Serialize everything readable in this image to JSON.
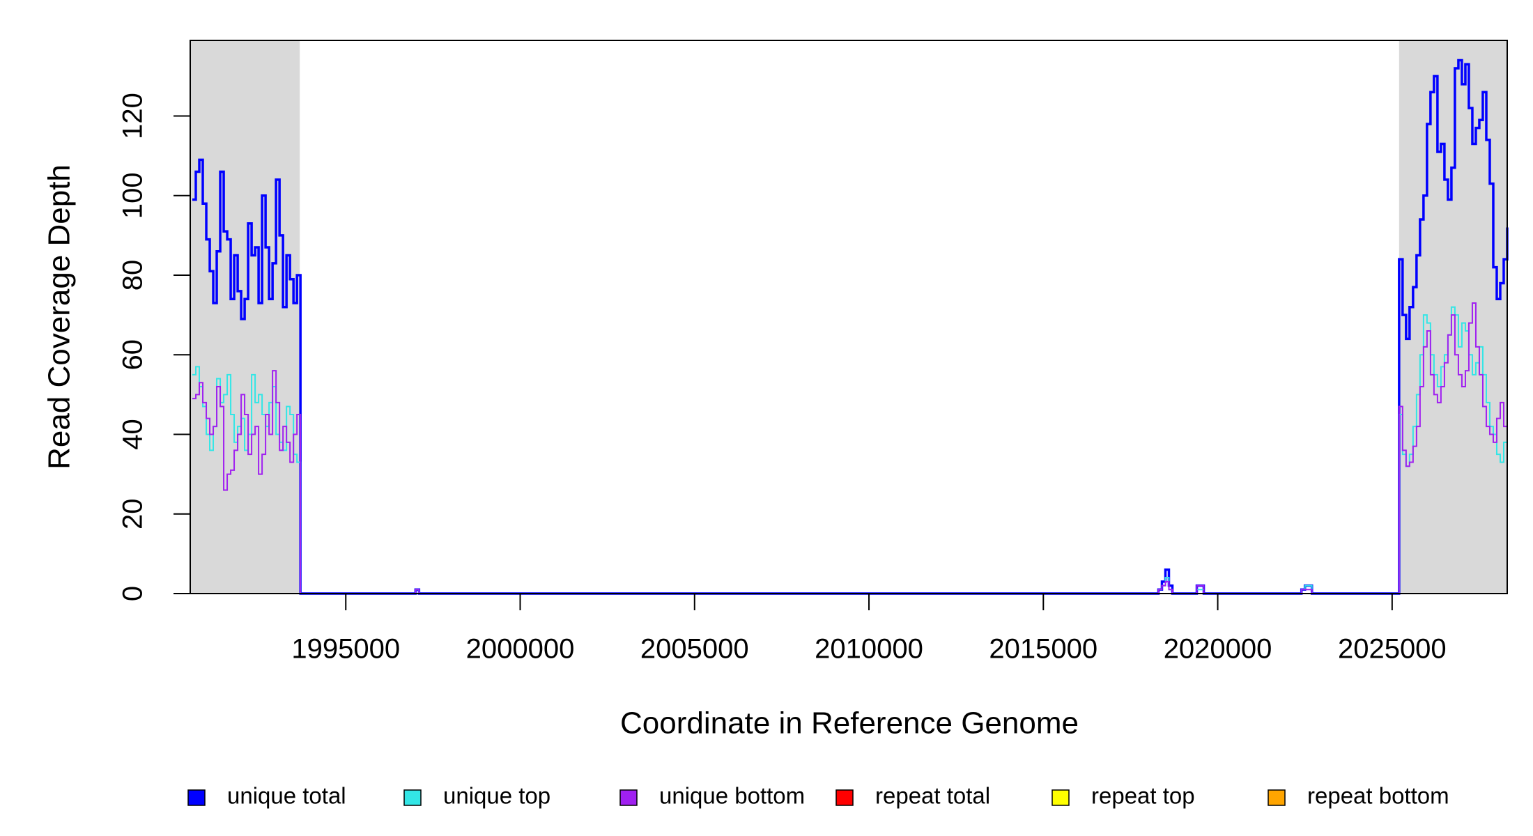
{
  "chart_data": {
    "type": "step-line",
    "xlabel": "Coordinate in Reference Genome",
    "ylabel": "Read Coverage Depth",
    "xlim": [
      1990540,
      2028300
    ],
    "ylim": [
      0,
      139
    ],
    "xticks": [
      1995000,
      2000000,
      2005000,
      2010000,
      2015000,
      2020000,
      2025000
    ],
    "yticks": [
      0,
      20,
      40,
      60,
      80,
      100,
      120
    ],
    "shaded_regions": [
      [
        1990540,
        1993680
      ],
      [
        2025200,
        2028300
      ]
    ],
    "shade_color": "#d9d9d9",
    "x": [
      1990600,
      1990700,
      1990800,
      1990900,
      1991000,
      1991100,
      1991200,
      1991300,
      1991400,
      1991500,
      1991600,
      1991700,
      1991800,
      1991900,
      1992000,
      1992100,
      1992200,
      1992300,
      1992400,
      1992500,
      1992600,
      1992700,
      1992800,
      1992900,
      1993000,
      1993100,
      1993200,
      1993300,
      1993400,
      1993500,
      1993600,
      1993700,
      1997000,
      1997100,
      2018300,
      2018400,
      2018500,
      2018600,
      2018700,
      2019400,
      2019600,
      2022400,
      2022500,
      2022700,
      2025200,
      2025300,
      2025400,
      2025500,
      2025600,
      2025700,
      2025800,
      2025900,
      2026000,
      2026100,
      2026200,
      2026300,
      2026400,
      2026500,
      2026600,
      2026700,
      2026800,
      2026900,
      2027000,
      2027100,
      2027200,
      2027300,
      2027400,
      2027500,
      2027600,
      2027700,
      2027800,
      2027900,
      2028000,
      2028100,
      2028200,
      2028300
    ],
    "series": [
      {
        "name": "unique total",
        "color": "#0000ff",
        "width": 3.5,
        "values": [
          99,
          106,
          109,
          98,
          89,
          81,
          73,
          86,
          106,
          91,
          89,
          74,
          85,
          76,
          69,
          74,
          93,
          85,
          87,
          73,
          100,
          87,
          74,
          83,
          104,
          90,
          72,
          85,
          79,
          73,
          80,
          0,
          1,
          0,
          1,
          3,
          6,
          2,
          0,
          2,
          0,
          1,
          2,
          0,
          84,
          70,
          64,
          72,
          77,
          85,
          94,
          100,
          118,
          126,
          130,
          111,
          113,
          104,
          99,
          107,
          132,
          134,
          128,
          133,
          122,
          113,
          117,
          119,
          126,
          114,
          103,
          82,
          74,
          78,
          84,
          92
        ]
      },
      {
        "name": "unique top",
        "color": "#33e6e6",
        "width": 2,
        "values": [
          55,
          57,
          52,
          47,
          40,
          36,
          42,
          54,
          48,
          50,
          55,
          45,
          38,
          42,
          44,
          36,
          40,
          55,
          48,
          50,
          45,
          42,
          48,
          52,
          40,
          38,
          36,
          47,
          45,
          35,
          33,
          0,
          1,
          0,
          1,
          2,
          4,
          1,
          0,
          1,
          0,
          1,
          2,
          0,
          45,
          35,
          32,
          35,
          42,
          50,
          60,
          70,
          68,
          60,
          55,
          52,
          57,
          60,
          65,
          72,
          70,
          62,
          68,
          66,
          60,
          55,
          58,
          62,
          55,
          48,
          42,
          40,
          35,
          33,
          38,
          42
        ]
      },
      {
        "name": "unique bottom",
        "color": "#a020f0",
        "width": 2,
        "values": [
          49,
          50,
          53,
          48,
          44,
          40,
          42,
          52,
          47,
          26,
          30,
          31,
          36,
          40,
          50,
          45,
          35,
          40,
          42,
          30,
          35,
          45,
          40,
          56,
          48,
          36,
          42,
          38,
          33,
          40,
          45,
          0,
          1,
          0,
          1,
          2,
          3,
          1,
          0,
          2,
          0,
          1,
          1,
          0,
          47,
          36,
          32,
          33,
          37,
          42,
          52,
          62,
          66,
          55,
          50,
          48,
          52,
          58,
          65,
          70,
          60,
          55,
          52,
          56,
          68,
          73,
          62,
          55,
          47,
          42,
          40,
          38,
          44,
          48,
          42,
          40
        ]
      },
      {
        "name": "repeat total",
        "color": "#ff0000",
        "width": 2,
        "values": [
          0,
          0,
          0,
          0,
          0,
          0,
          0,
          0,
          0,
          0,
          0,
          0,
          0,
          0,
          0,
          0,
          0,
          0,
          0,
          0,
          0,
          0,
          0,
          0,
          0,
          0,
          0,
          0,
          0,
          0,
          0,
          0,
          0,
          0,
          0,
          0,
          0,
          0,
          0,
          0,
          0,
          0,
          0,
          0,
          0,
          0,
          0,
          0,
          0,
          0,
          0,
          0,
          0,
          0,
          0,
          0,
          0,
          0,
          0,
          0,
          0,
          0,
          0,
          0,
          0,
          0,
          0,
          0,
          0,
          0,
          0,
          0,
          0,
          0,
          0,
          0
        ]
      },
      {
        "name": "repeat top",
        "color": "#ffff00",
        "width": 2,
        "values": [
          0,
          0,
          0,
          0,
          0,
          0,
          0,
          0,
          0,
          0,
          0,
          0,
          0,
          0,
          0,
          0,
          0,
          0,
          0,
          0,
          0,
          0,
          0,
          0,
          0,
          0,
          0,
          0,
          0,
          0,
          0,
          0,
          0,
          0,
          0,
          0,
          0,
          0,
          0,
          0,
          0,
          0,
          0,
          0,
          0,
          0,
          0,
          0,
          0,
          0,
          0,
          0,
          0,
          0,
          0,
          0,
          0,
          0,
          0,
          0,
          0,
          0,
          0,
          0,
          0,
          0,
          0,
          0,
          0,
          0,
          0,
          0,
          0,
          0,
          0,
          0
        ]
      },
      {
        "name": "repeat bottom",
        "color": "#ffa500",
        "width": 2,
        "values": [
          0,
          0,
          0,
          0,
          0,
          0,
          0,
          0,
          0,
          0,
          0,
          0,
          0,
          0,
          0,
          0,
          0,
          0,
          0,
          0,
          0,
          0,
          0,
          0,
          0,
          0,
          0,
          0,
          0,
          0,
          0,
          0,
          0,
          0,
          0,
          0,
          0,
          0,
          0,
          0,
          0,
          0,
          0,
          0,
          0,
          0,
          0,
          0,
          0,
          0,
          0,
          0,
          0,
          0,
          0,
          0,
          0,
          0,
          0,
          0,
          0,
          0,
          0,
          0,
          0,
          0,
          0,
          0,
          0,
          0,
          0,
          0,
          0,
          0,
          0,
          0
        ]
      }
    ]
  }
}
